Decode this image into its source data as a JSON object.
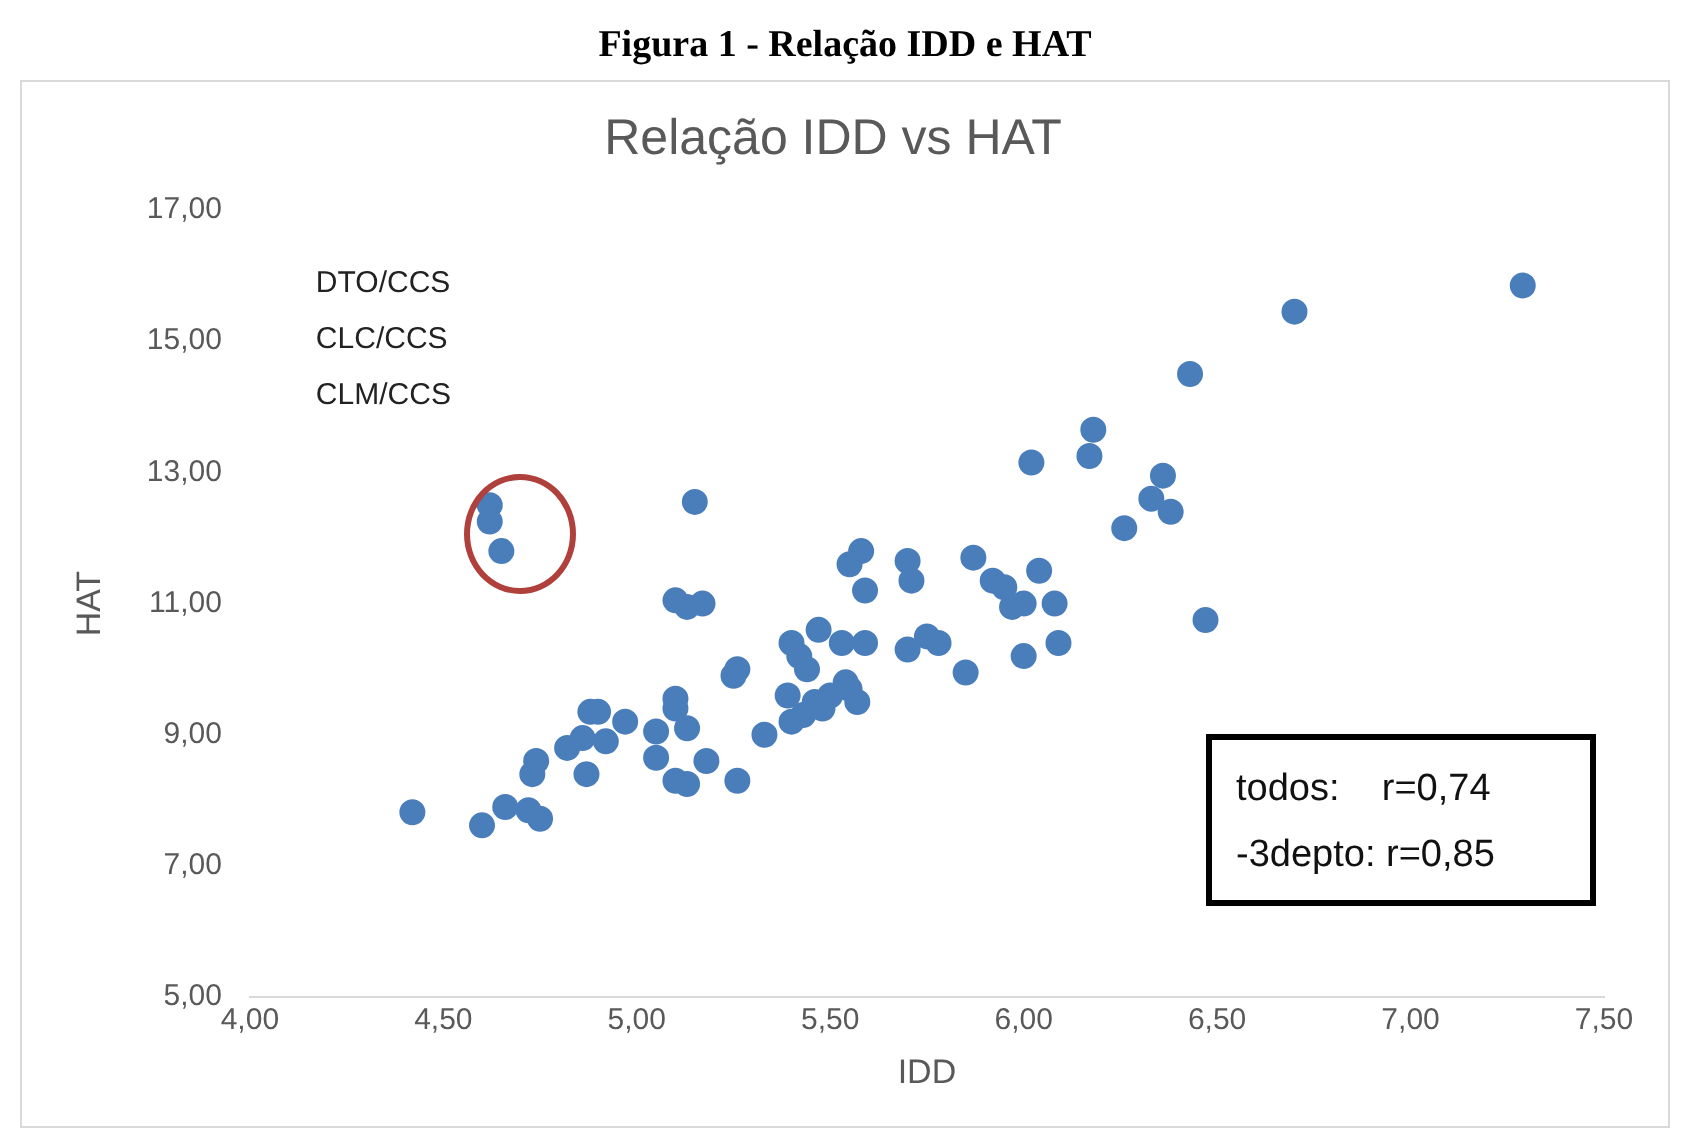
{
  "chart_data": {
    "type": "scatter",
    "title": "Figura 1 - Relação IDD e HAT",
    "subtitle": "Relação IDD vs HAT",
    "xlabel": "IDD",
    "ylabel": "HAT",
    "annotations": [
      "DTO/CCS",
      "CLC/CCS",
      "CLM/CCS",
      "todos:    r=0,74",
      "-3depto: r=0,85"
    ],
    "series": [
      {
        "color": "#4a7ebb",
        "x": [
          4.42,
          4.6,
          4.66,
          4.72,
          4.75,
          4.73,
          4.74,
          4.82,
          4.86,
          4.88,
          4.9,
          4.87,
          4.92,
          4.97,
          5.05,
          5.05,
          5.1,
          5.13,
          5.17,
          5.15,
          5.1,
          5.1,
          5.13,
          5.1,
          5.13,
          5.18,
          5.26,
          5.25,
          5.26,
          5.33,
          5.39,
          5.4,
          5.42,
          5.44,
          5.4,
          5.43,
          5.46,
          5.47,
          5.5,
          5.48,
          5.53,
          5.54,
          5.55,
          5.57,
          5.55,
          5.58,
          5.59,
          5.59,
          5.7,
          5.71,
          5.7,
          5.75,
          5.78,
          5.85,
          5.87,
          5.92,
          5.95,
          5.97,
          6.0,
          6.0,
          6.02,
          6.04,
          6.08,
          6.09,
          6.17,
          6.18,
          6.26,
          6.33,
          6.36,
          6.38,
          6.43,
          6.47,
          6.7,
          7.29,
          4.62,
          4.62,
          4.65
        ],
        "values": [
          7.82,
          7.62,
          7.9,
          7.85,
          7.72,
          8.4,
          8.6,
          8.8,
          8.95,
          9.35,
          9.35,
          8.4,
          8.9,
          9.2,
          9.05,
          8.65,
          11.05,
          10.95,
          11.0,
          12.55,
          9.4,
          9.55,
          9.1,
          8.3,
          8.25,
          8.6,
          8.3,
          9.9,
          10.0,
          9.0,
          9.6,
          10.4,
          10.2,
          10.0,
          9.2,
          9.3,
          9.5,
          10.6,
          9.6,
          9.4,
          10.4,
          9.8,
          9.7,
          9.5,
          11.6,
          11.8,
          11.2,
          10.4,
          11.65,
          11.35,
          10.3,
          10.5,
          10.4,
          9.95,
          11.7,
          11.35,
          11.25,
          10.95,
          11.0,
          10.2,
          13.15,
          11.5,
          11.0,
          10.4,
          13.25,
          13.65,
          12.15,
          12.6,
          12.95,
          12.4,
          14.5,
          10.75,
          15.45,
          15.85,
          12.5,
          12.25,
          11.8
        ]
      }
    ],
    "xlim": [
      4,
      7.5
    ],
    "ylim": [
      5,
      17
    ],
    "xticks": [
      {
        "value": 4,
        "label": "4,00"
      },
      {
        "value": 4.5,
        "label": "4,50"
      },
      {
        "value": 5,
        "label": "5,00"
      },
      {
        "value": 5.5,
        "label": "5,50"
      },
      {
        "value": 6,
        "label": "6,00"
      },
      {
        "value": 6.5,
        "label": "6,50"
      },
      {
        "value": 7,
        "label": "7,00"
      },
      {
        "value": 7.5,
        "label": "7,50"
      }
    ],
    "yticks": [
      {
        "value": 5,
        "label": "5,00"
      },
      {
        "value": 7,
        "label": "7,00"
      },
      {
        "value": 9,
        "label": "9,00"
      },
      {
        "value": 11,
        "label": "11,00"
      },
      {
        "value": 13,
        "label": "13,00"
      },
      {
        "value": 15,
        "label": "15,00"
      },
      {
        "value": 17,
        "label": "17,00"
      }
    ],
    "marker": "circle",
    "legend": false
  }
}
